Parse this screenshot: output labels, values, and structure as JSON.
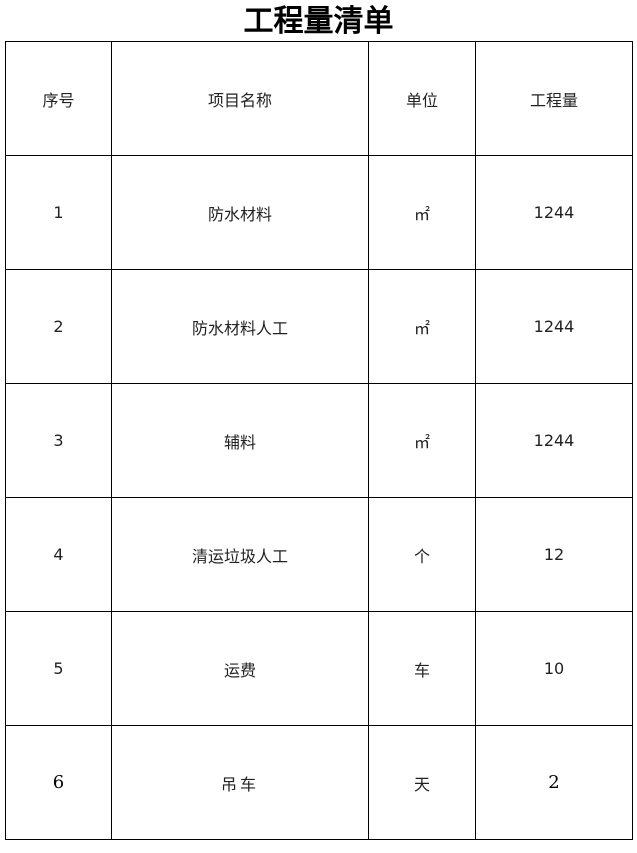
{
  "title": "工程量清单",
  "table": {
    "headers": [
      "序号",
      "项目名称",
      "单位",
      "工程量"
    ],
    "rows": [
      [
        "1",
        "防水材料",
        "㎡",
        "1244"
      ],
      [
        "2",
        "防水材料人工",
        "㎡",
        "1244"
      ],
      [
        "3",
        "辅料",
        "㎡",
        "1244"
      ],
      [
        "4",
        "清运垃圾人工",
        "个",
        "12"
      ],
      [
        "5",
        "运费",
        "车",
        "10"
      ],
      [
        "6",
        "吊车",
        "天",
        "2"
      ]
    ]
  }
}
